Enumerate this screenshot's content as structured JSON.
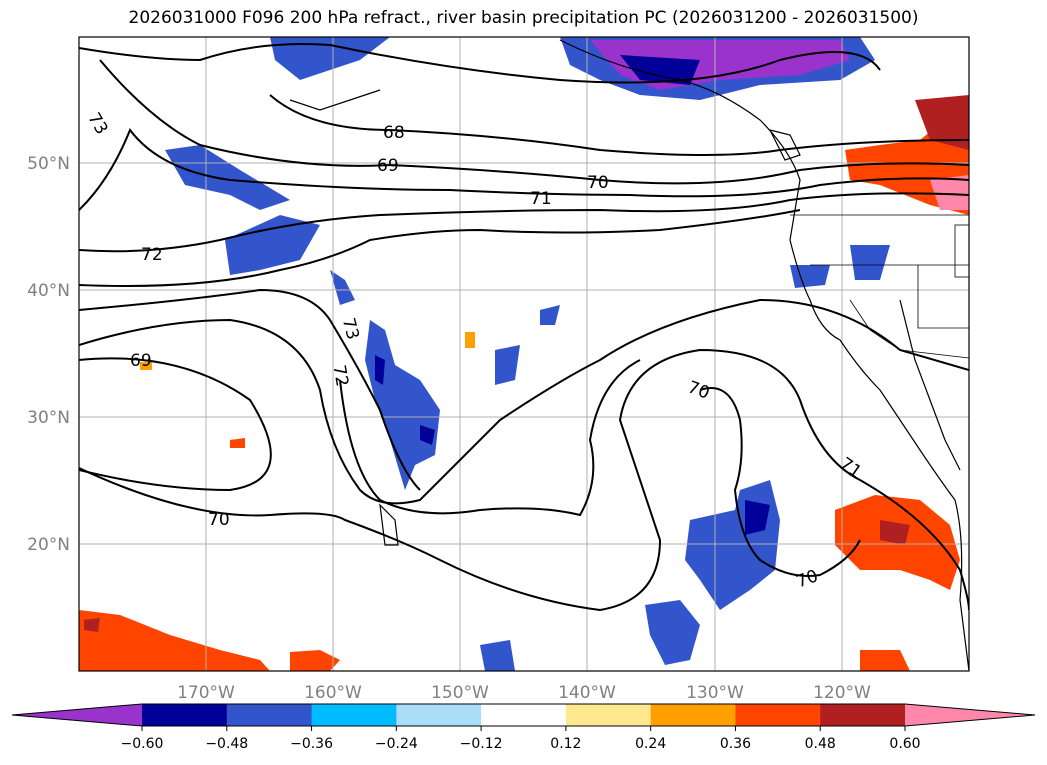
{
  "title": "2026031000 F096 200 hPa refract., river basin precipitation PC (2026031200 - 2026031500)",
  "map": {
    "lon_labels": [
      "170°W",
      "160°W",
      "150°W",
      "140°W",
      "130°W",
      "120°W"
    ],
    "lat_labels": [
      "50°N",
      "40°N",
      "30°N",
      "20°N"
    ],
    "extent": {
      "lon": [
        -180,
        -110
      ],
      "lat": [
        10,
        60
      ]
    }
  },
  "contours": {
    "levels": [
      68,
      69,
      70,
      71,
      72,
      73
    ],
    "labels": [
      {
        "text": "68"
      },
      {
        "text": "69"
      },
      {
        "text": "70"
      },
      {
        "text": "71"
      },
      {
        "text": "72"
      },
      {
        "text": "73"
      },
      {
        "text": "69"
      },
      {
        "text": "73"
      },
      {
        "text": "72"
      },
      {
        "text": "70"
      },
      {
        "text": "70"
      },
      {
        "text": "71"
      },
      {
        "text": "70"
      }
    ]
  },
  "colorbar": {
    "ticks": [
      "−0.60",
      "−0.48",
      "−0.36",
      "−0.24",
      "−0.12",
      "0.12",
      "0.24",
      "0.36",
      "0.48",
      "0.60"
    ],
    "colors": [
      "#9933cc",
      "#000099",
      "#3355cc",
      "#00bbff",
      "#aaddf7",
      "#ffffff",
      "#ffe890",
      "#ffa000",
      "#ff4400",
      "#b02020",
      "#ff88aa"
    ]
  }
}
